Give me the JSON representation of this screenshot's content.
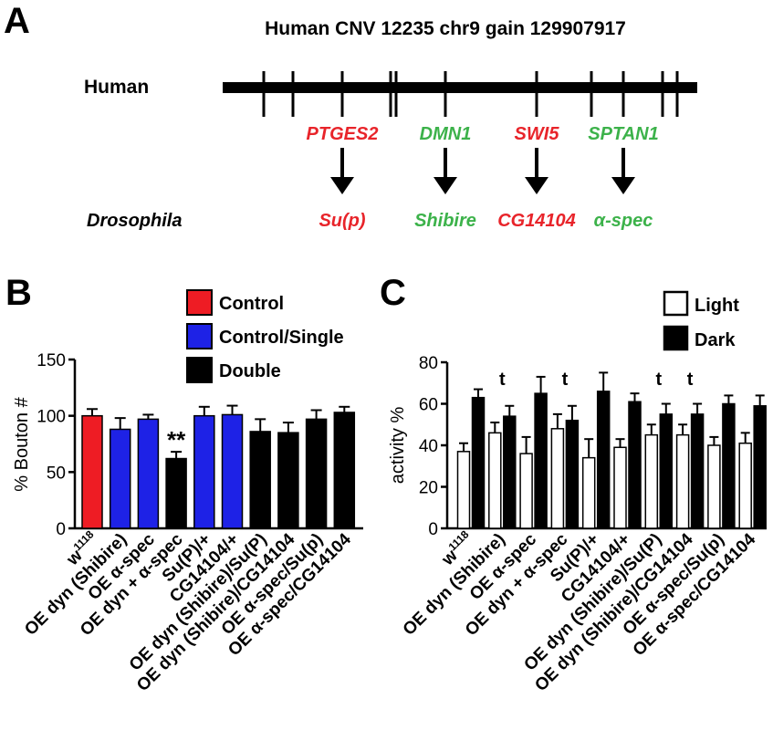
{
  "panel_a": {
    "letter": "A",
    "title": "Human CNV 12235 chr9 gain 129907917",
    "human_label": "Human",
    "drosophila_label": "Drosophila",
    "genes": [
      {
        "human": "PTGES2",
        "fly": "Su(p)",
        "color": "#e8242a"
      },
      {
        "human": "DMN1",
        "fly": "Shibire",
        "color": "#3cb24a"
      },
      {
        "human": "SWI5",
        "fly": "CG14104",
        "color": "#e8242a"
      },
      {
        "human": "SPTAN1",
        "fly": "α-spec",
        "color": "#3cb24a"
      }
    ]
  },
  "chart_data": [
    {
      "panel": "B",
      "type": "bar",
      "ylabel": "% Bouton #",
      "ylim": [
        0,
        150
      ],
      "yticks": [
        "0",
        "50",
        "100",
        "150"
      ],
      "categories": [
        "w1118",
        "OE dyn (Shibire)",
        "OE α-spec",
        "OE dyn + α-spec",
        "Su(P)/+",
        "CG14104/+",
        "OE dyn (Shibire)/Su(P)",
        "OE dyn (Shibire)/CG14104",
        "OE α-spec/Su(p)",
        "OE α-spec/CG14104"
      ],
      "values": [
        100,
        88,
        97,
        62,
        100,
        101,
        86,
        85,
        97,
        103
      ],
      "errors": [
        6,
        10,
        4,
        6,
        8,
        8,
        11,
        9,
        8,
        5
      ],
      "groups": [
        "Control",
        "Control/Single",
        "Control/Single",
        "Double",
        "Control/Single",
        "Control/Single",
        "Double",
        "Double",
        "Double",
        "Double"
      ],
      "legend": [
        {
          "name": "Control",
          "color": "#ee1c24"
        },
        {
          "name": "Control/Single",
          "color": "#1e22e6"
        },
        {
          "name": "Double",
          "color": "#000000"
        }
      ],
      "annotations": [
        {
          "category": "OE dyn + α-spec",
          "text": "**"
        }
      ]
    },
    {
      "panel": "C",
      "type": "bar",
      "ylabel": "activity %",
      "ylim": [
        0,
        80
      ],
      "yticks": [
        "0",
        "20",
        "40",
        "60",
        "80"
      ],
      "categories": [
        "w1118",
        "OE dyn (Shibire)",
        "OE α-spec",
        "OE dyn + α-spec",
        "Su(P)/+",
        "CG14104/+",
        "OE dyn (Shibire)/Su(P)",
        "OE dyn (Shibire)/CG14104",
        "OE α-spec/Su(p)",
        "OE α-spec/CG14104"
      ],
      "series": [
        {
          "name": "Light",
          "values": [
            37,
            46,
            36,
            48,
            34,
            39,
            45,
            45,
            40,
            41
          ],
          "errors": [
            4,
            5,
            8,
            7,
            9,
            4,
            5,
            5,
            4,
            5
          ],
          "color": "#ffffff"
        },
        {
          "name": "Dark",
          "values": [
            63,
            54,
            65,
            52,
            66,
            61,
            55,
            55,
            60,
            59
          ],
          "errors": [
            4,
            5,
            8,
            7,
            9,
            4,
            5,
            5,
            4,
            5
          ],
          "color": "#000000"
        }
      ],
      "annotations": [
        {
          "category": "OE dyn (Shibire)",
          "text": "t"
        },
        {
          "category": "OE dyn + α-spec",
          "text": "t"
        },
        {
          "category": "OE dyn (Shibire)/Su(P)",
          "text": "t"
        },
        {
          "category": "OE dyn (Shibire)/CG14104",
          "text": "t"
        }
      ]
    }
  ]
}
